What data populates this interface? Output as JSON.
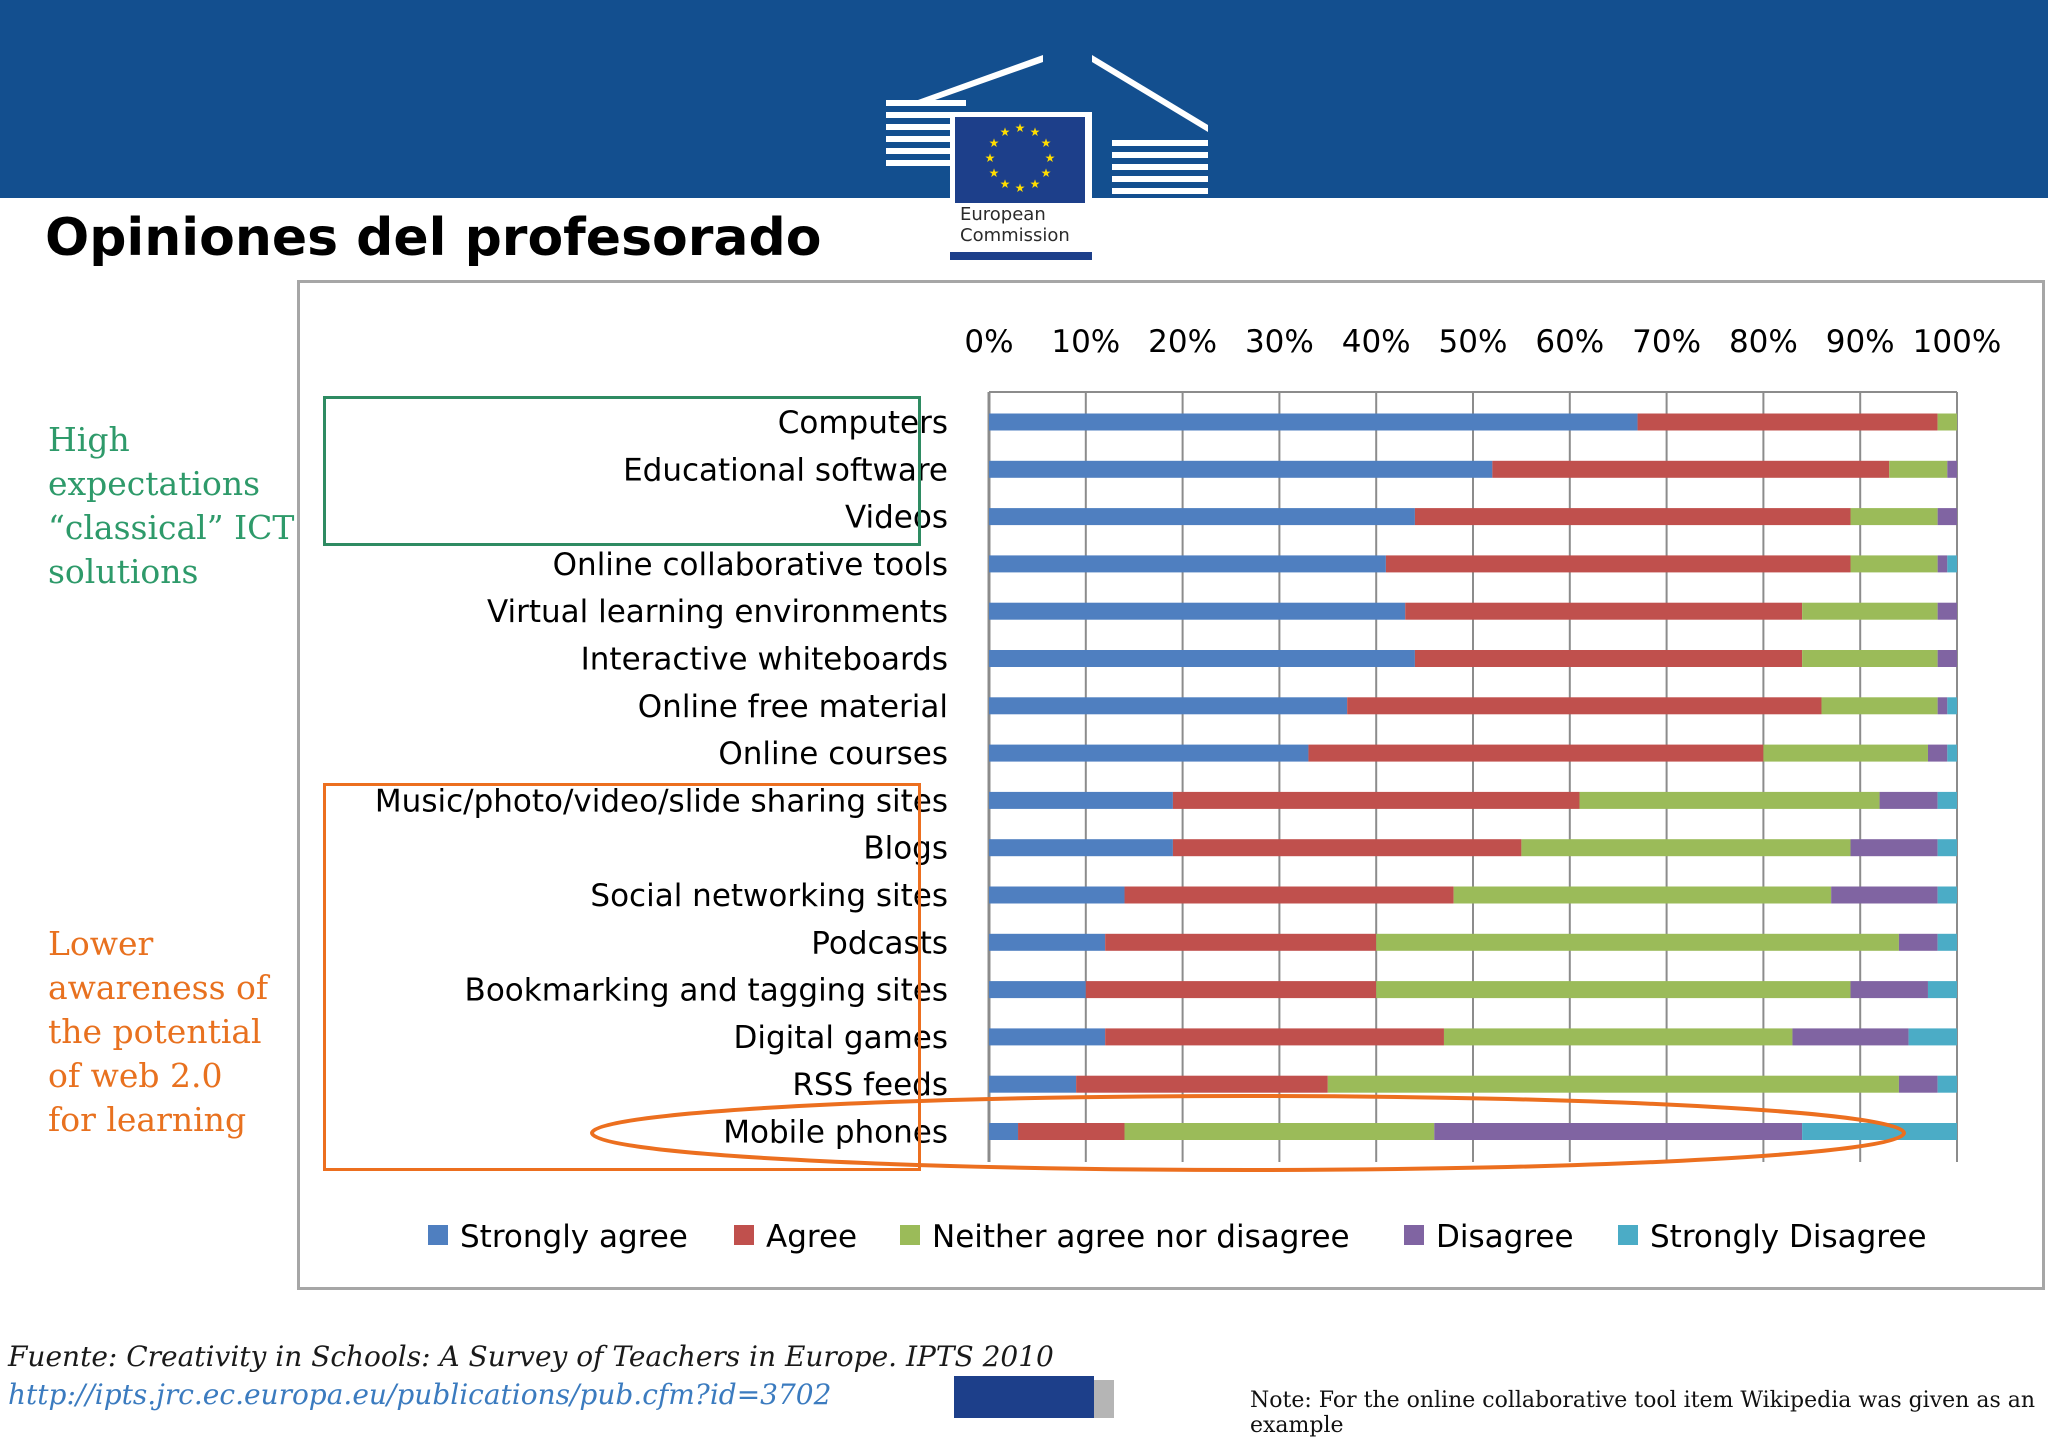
{
  "page": {
    "title": "Opiniones del profesorado",
    "logo_line1": "European",
    "logo_line2": "Commission",
    "side_green": [
      "High",
      "expectations",
      "“classical” ICT",
      "solutions"
    ],
    "side_orange": [
      "Lower",
      "awareness of",
      "the potential",
      "of web 2.0",
      "for learning"
    ],
    "source": "Fuente: Creativity in Schools: A Survey of Teachers in Europe. IPTS 2010",
    "source_url": "http://ipts.jrc.ec.europa.eu/publications/pub.cfm?id=3702",
    "note": "Note: For the online collaborative tool item Wikipedia was given as an example"
  },
  "colors": {
    "header": "#134f8f",
    "green_annotation": "#2e8b62",
    "orange_annotation": "#ec6f1f"
  },
  "chart_data": {
    "type": "bar",
    "orientation": "horizontal",
    "stacked": true,
    "title": "",
    "xlim": [
      0,
      100
    ],
    "x_ticks": [
      "0%",
      "10%",
      "20%",
      "30%",
      "40%",
      "50%",
      "60%",
      "70%",
      "80%",
      "90%",
      "100%"
    ],
    "legend_position": "bottom",
    "grid": true,
    "categories": [
      "Computers",
      "Educational software",
      "Videos",
      "Online collaborative tools",
      "Virtual learning environments",
      "Interactive whiteboards",
      "Online free material",
      "Online courses",
      "Music/photo/video/slide sharing sites",
      "Blogs",
      "Social networking sites",
      "Podcasts",
      "Bookmarking and tagging sites",
      "Digital games",
      "RSS feeds",
      "Mobile phones"
    ],
    "series": [
      {
        "name": "Strongly agree",
        "color": "#4f7fc0",
        "values": [
          67,
          52,
          44,
          41,
          43,
          44,
          37,
          33,
          19,
          19,
          14,
          12,
          10,
          12,
          9,
          3
        ]
      },
      {
        "name": "Agree",
        "color": "#c0504d",
        "values": [
          31,
          41,
          45,
          48,
          41,
          40,
          49,
          47,
          42,
          36,
          34,
          28,
          30,
          35,
          26,
          11
        ]
      },
      {
        "name": "Neither agree nor disagree",
        "color": "#9bbb59",
        "values": [
          2,
          6,
          9,
          9,
          14,
          14,
          12,
          17,
          31,
          34,
          39,
          54,
          49,
          36,
          59,
          32
        ]
      },
      {
        "name": "Disagree",
        "color": "#8064a2",
        "values": [
          0,
          1,
          2,
          1,
          2,
          2,
          1,
          2,
          6,
          9,
          11,
          4,
          8,
          12,
          4,
          38
        ]
      },
      {
        "name": "Strongly Disagree",
        "color": "#4bacc6",
        "values": [
          0,
          0,
          0,
          1,
          0,
          0,
          1,
          1,
          2,
          2,
          2,
          2,
          3,
          5,
          2,
          16
        ]
      }
    ]
  }
}
